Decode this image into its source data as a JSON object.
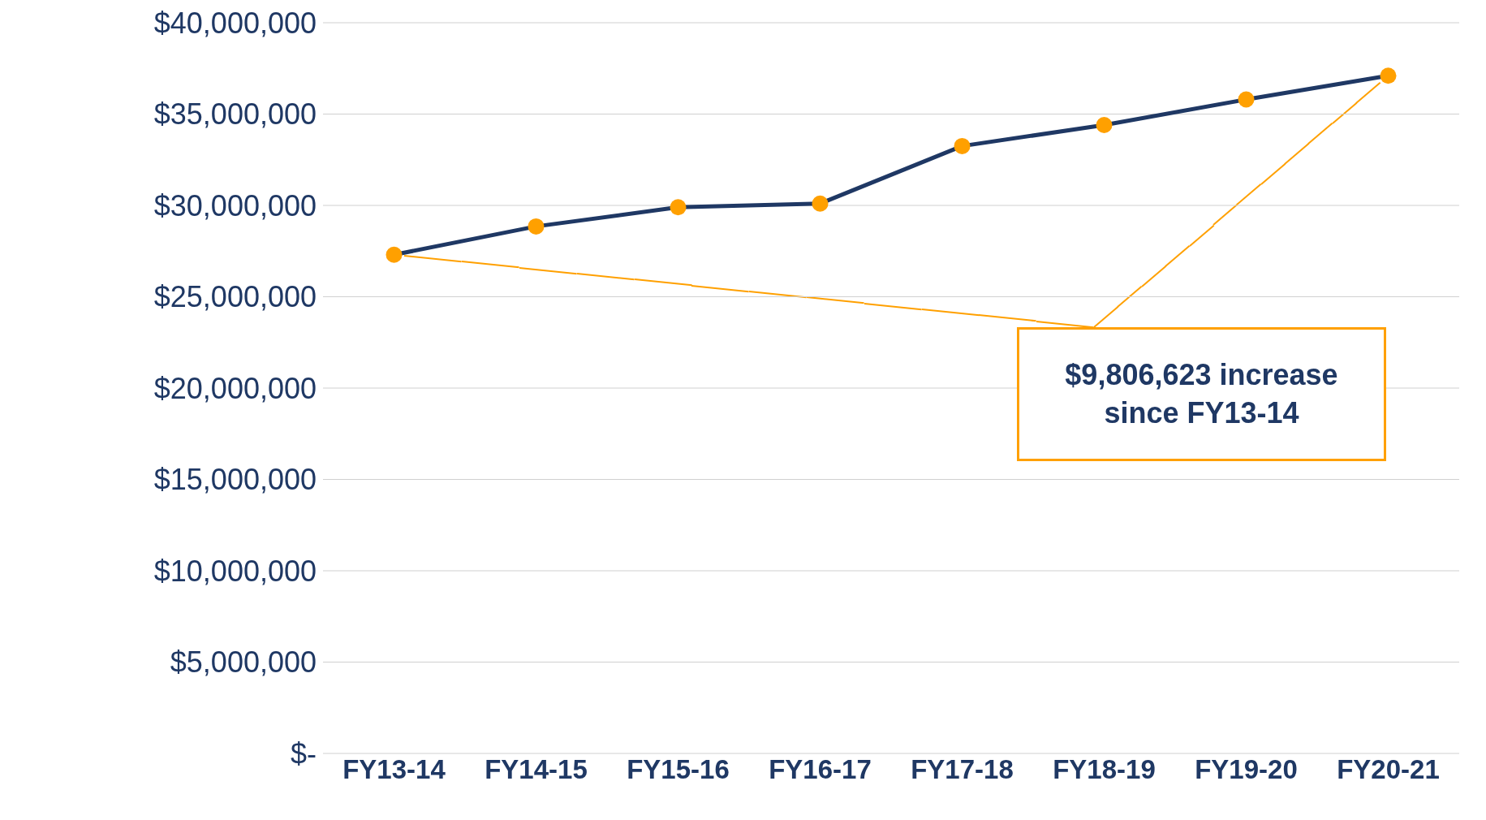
{
  "chart_data": {
    "type": "line",
    "categories": [
      "FY13-14",
      "FY14-15",
      "FY15-16",
      "FY16-17",
      "FY17-18",
      "FY18-19",
      "FY19-20",
      "FY20-21"
    ],
    "series": [
      {
        "color": "#1f3864",
        "colors": [
          "#ffa000",
          "#ffa000",
          "#ffa000",
          "#ffa000",
          "#ffa000",
          "#ffa000",
          "#ffa000",
          "#ffa000"
        ],
        "values": [
          27300000,
          28850000,
          29900000,
          30100000,
          33250000,
          34400000,
          35800000,
          37100000
        ]
      }
    ],
    "ylim": [
      0,
      40000000
    ],
    "yticks": [
      {
        "value": 0,
        "label": "$-"
      },
      {
        "value": 5000000,
        "label": "$5,000,000"
      },
      {
        "value": 10000000,
        "label": "$10,000,000"
      },
      {
        "value": 15000000,
        "label": "$15,000,000"
      },
      {
        "value": 20000000,
        "label": "$20,000,000"
      },
      {
        "value": 25000000,
        "label": "$25,000,000"
      },
      {
        "value": 30000000,
        "label": "$30,000,000"
      },
      {
        "value": 35000000,
        "label": "$35,000,000"
      },
      {
        "value": 40000000,
        "label": "$40,000,000"
      }
    ],
    "grid": "y",
    "legend": false,
    "marker": "circle",
    "line_style": "solid",
    "annotations": [
      "$9,806,623 increase since FY13-14"
    ]
  }
}
